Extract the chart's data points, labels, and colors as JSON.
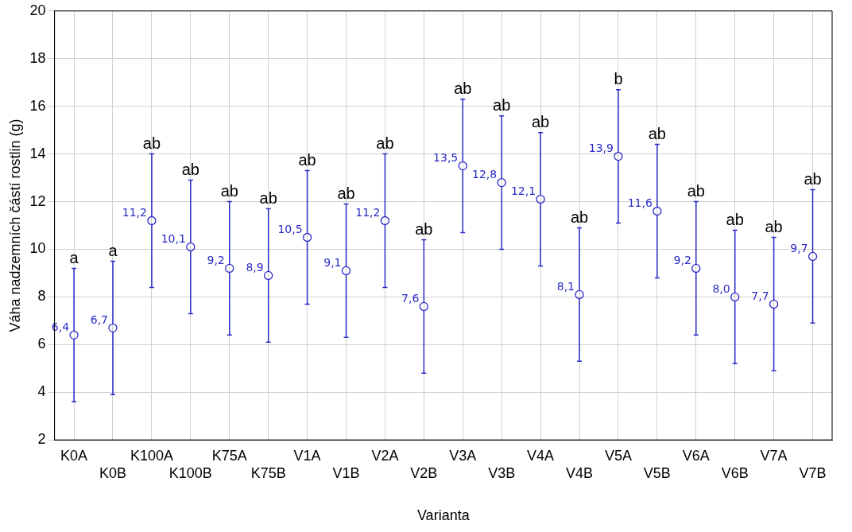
{
  "chart_data": {
    "type": "scatter",
    "xlabel": "Varianta",
    "ylabel": "Váha nadzemních částí rostlin (g)",
    "categories": [
      "K0A",
      "K0B",
      "K100A",
      "K100B",
      "K75A",
      "K75B",
      "V1A",
      "V1B",
      "V2A",
      "V2B",
      "V3A",
      "V3B",
      "V4A",
      "V4B",
      "V5A",
      "V5B",
      "V6A",
      "V6B",
      "V7A",
      "V7B"
    ],
    "series": [
      {
        "color": "#2b2bc8",
        "values": [
          6.4,
          6.7,
          11.2,
          10.1,
          9.2,
          8.9,
          10.5,
          9.1,
          11.2,
          7.6,
          13.5,
          12.8,
          12.1,
          8.1,
          13.9,
          11.6,
          9.2,
          8.0,
          7.7,
          9.7
        ],
        "errors": [
          2.8,
          2.8,
          2.8,
          2.8,
          2.8,
          2.8,
          2.8,
          2.8,
          2.8,
          2.8,
          2.8,
          2.8,
          2.8,
          2.8,
          2.8,
          2.8,
          2.8,
          2.8,
          2.8,
          2.8
        ],
        "value_labels": [
          "6,4",
          "6,7",
          "11,2",
          "10,1",
          "9,2",
          "8,9",
          "10,5",
          "9,1",
          "11,2",
          "7,6",
          "13,5",
          "12,8",
          "12,1",
          "8,1",
          "13,9",
          "11,6",
          "9,2",
          "8,0",
          "7,7",
          "9,7"
        ]
      }
    ],
    "annotations": [
      {
        "text": "a",
        "x": "K0A",
        "y": 9.2
      },
      {
        "text": "a",
        "x": "K0B",
        "y": 9.5
      },
      {
        "text": "ab",
        "x": "K100A",
        "y": 14.0
      },
      {
        "text": "ab",
        "x": "K100B",
        "y": 12.9
      },
      {
        "text": "ab",
        "x": "K75A",
        "y": 12.0
      },
      {
        "text": "ab",
        "x": "K75B",
        "y": 11.7
      },
      {
        "text": "ab",
        "x": "V1A",
        "y": 13.3
      },
      {
        "text": "ab",
        "x": "V1B",
        "y": 11.9
      },
      {
        "text": "ab",
        "x": "V2A",
        "y": 14.0
      },
      {
        "text": "ab",
        "x": "V2B",
        "y": 10.4
      },
      {
        "text": "ab",
        "x": "V3A",
        "y": 16.3
      },
      {
        "text": "ab",
        "x": "V3B",
        "y": 15.6
      },
      {
        "text": "ab",
        "x": "V4A",
        "y": 14.9
      },
      {
        "text": "ab",
        "x": "V4B",
        "y": 10.9
      },
      {
        "text": "b",
        "x": "V5A",
        "y": 16.7
      },
      {
        "text": "ab",
        "x": "V5B",
        "y": 14.4
      },
      {
        "text": "ab",
        "x": "V6A",
        "y": 12.0
      },
      {
        "text": "ab",
        "x": "V6B",
        "y": 10.8
      },
      {
        "text": "ab",
        "x": "V7A",
        "y": 10.5
      },
      {
        "text": "ab",
        "x": "V7B",
        "y": 12.5
      }
    ],
    "ylim": [
      2,
      20
    ],
    "yticks": [
      2,
      4,
      6,
      8,
      10,
      12,
      14,
      16,
      18,
      20
    ],
    "grid": true,
    "marker": "circle",
    "legend": false
  }
}
